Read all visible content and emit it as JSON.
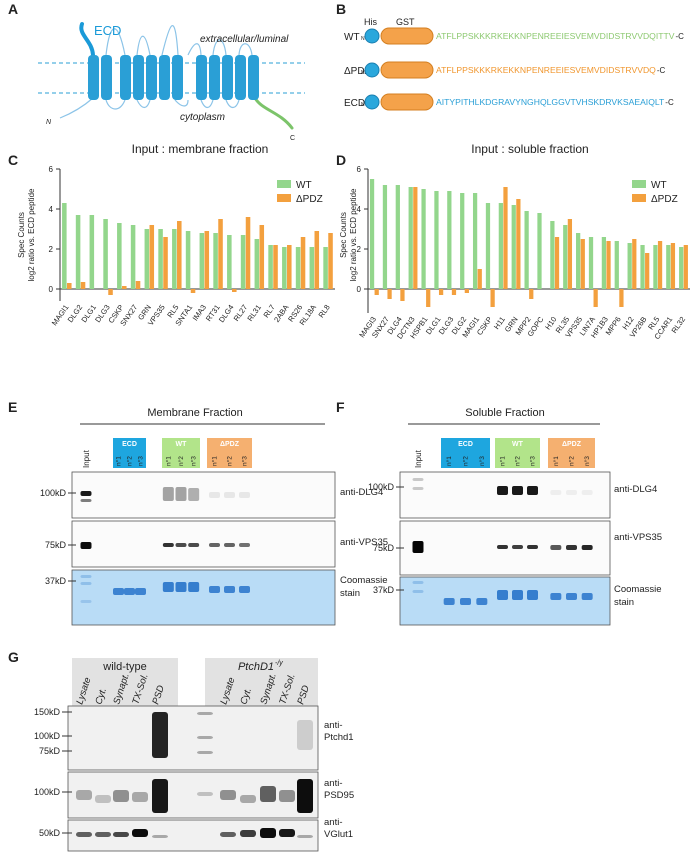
{
  "panel_labels": [
    "A",
    "B",
    "C",
    "D",
    "E",
    "F",
    "G"
  ],
  "topology": {
    "domain": "ECD",
    "outside": "extracellular/luminal",
    "inside": "cytoplasm",
    "n_term": "N",
    "c_term": "C"
  },
  "constructs": {
    "his": "His",
    "gst": "GST",
    "n_term": "N",
    "c_term": "-C",
    "rows": [
      {
        "name": "WT",
        "sequence": "ATFLPPSKKKRKEKKNPENREEIESVEMVDIDSTRVVDQITTV",
        "color": "#8dc971"
      },
      {
        "name": "ΔPDZ",
        "sequence": "ATFLPPSKKKRKEKKNPENREEIESVEMVDIDSTRVVDQ",
        "color": "#f0962e"
      },
      {
        "name": "ECD",
        "sequence": "AITYPITHLKDGRAVYNGHQLGGVTVHSKDRVKSAEAIQLT",
        "color": "#2a9fd6"
      }
    ]
  },
  "chart_data": [
    {
      "type": "bar",
      "title": "Input : membrane fraction",
      "y_label": [
        "Spec Counts",
        "log2 ratio vs. ECD peptide"
      ],
      "categories": [
        "MAGI1",
        "DLG2",
        "DLG1",
        "DLG3",
        "CSKP",
        "SNX27",
        "GRN",
        "VPS35",
        "RL5",
        "SNTA1",
        "IMA3",
        "RT31",
        "DLG4",
        "RL27",
        "RL31",
        "RL7",
        "2ABA",
        "RS26",
        "RL18A",
        "RL8"
      ],
      "series": [
        {
          "name": "WT",
          "color": "#93d68c",
          "values": [
            4.3,
            3.7,
            3.7,
            3.5,
            3.3,
            3.2,
            3.0,
            3.0,
            3.0,
            2.9,
            2.8,
            2.8,
            2.7,
            2.7,
            2.5,
            2.2,
            2.1,
            2.1,
            2.1,
            2.1
          ]
        },
        {
          "name": "ΔPDZ",
          "color": "#f3a03e",
          "values": [
            0.3,
            0.35,
            0,
            -0.3,
            0.15,
            0.4,
            3.2,
            2.6,
            3.4,
            -0.2,
            2.9,
            3.5,
            -0.15,
            3.6,
            3.2,
            2.2,
            2.2,
            2.6,
            2.9,
            2.8
          ]
        }
      ],
      "ylim": [
        -0.6,
        6
      ],
      "yticks": [
        0,
        2,
        4,
        6
      ],
      "legend": "upper right"
    },
    {
      "type": "bar",
      "title": "Input : soluble fraction",
      "y_label": [
        "Spec Counts",
        "log2 ratio vs. ECD peptide"
      ],
      "categories": [
        "MAGI3",
        "SNX27",
        "DLG4",
        "DCTN3",
        "HSPB1",
        "DLG1",
        "DLG3",
        "DLG2",
        "MAGI1",
        "CSKP",
        "H11",
        "GRN",
        "MPP2",
        "GOPC",
        "H10",
        "RL35",
        "VPS35",
        "LIN7A",
        "HP1B3",
        "MPP6",
        "H12",
        "VP26B",
        "RL5",
        "CCAR1",
        "RL32"
      ],
      "series": [
        {
          "name": "WT",
          "color": "#93d68c",
          "values": [
            5.5,
            5.2,
            5.2,
            5.1,
            5.0,
            4.9,
            4.9,
            4.8,
            4.8,
            4.3,
            4.3,
            4.2,
            3.9,
            3.8,
            3.4,
            3.2,
            2.8,
            2.6,
            2.6,
            2.4,
            2.3,
            2.2,
            2.2,
            2.2,
            2.1
          ]
        },
        {
          "name": "ΔPDZ",
          "color": "#f3a03e",
          "values": [
            -0.3,
            -0.5,
            -0.6,
            5.1,
            -0.9,
            -0.3,
            -0.3,
            -0.2,
            1.0,
            -0.9,
            5.1,
            4.5,
            -0.5,
            0,
            2.6,
            3.5,
            2.5,
            -0.9,
            2.4,
            -0.9,
            2.5,
            1.8,
            2.4,
            2.3,
            2.2
          ]
        }
      ],
      "ylim": [
        -1.2,
        6
      ],
      "yticks": [
        0,
        2,
        4,
        6
      ],
      "legend": "upper right"
    }
  ],
  "blots": [
    {
      "title": "Membrane Fraction",
      "input": "Input",
      "groups": [
        {
          "name": "ECD",
          "color": "#1ea6df",
          "lanes": [
            "n°1",
            "n°2",
            "n°3"
          ]
        },
        {
          "name": "WT",
          "color": "#b2e48a",
          "lanes": [
            "n°1",
            "n°2",
            "n°3"
          ]
        },
        {
          "name": "ΔPDZ",
          "color": "#f5b070",
          "lanes": [
            "n°1",
            "n°2",
            "n°3"
          ]
        }
      ],
      "markers": [
        "100kD",
        "75kD",
        "37kD"
      ],
      "probes": [
        [
          "anti-DLG4"
        ],
        [
          "anti-VPS35"
        ],
        [
          "Coomassie",
          "stain"
        ]
      ]
    },
    {
      "title": "Soluble Fraction",
      "input": "Input",
      "groups": [
        {
          "name": "ECD",
          "color": "#1ea6df",
          "lanes": [
            "n°1",
            "n°2",
            "n°3"
          ]
        },
        {
          "name": "WT",
          "color": "#b2e48a",
          "lanes": [
            "n°1",
            "n°2",
            "n°3"
          ]
        },
        {
          "name": "ΔPDZ",
          "color": "#f5b070",
          "lanes": [
            "n°1",
            "n°2",
            "n°3"
          ]
        }
      ],
      "markers": [
        "100kD",
        "75kD",
        "37kD"
      ],
      "probes": [
        [
          "anti-DLG4"
        ],
        [
          "anti-VPS35"
        ],
        [
          "Coomassie",
          "stain"
        ]
      ]
    }
  ],
  "fractionation": {
    "groups": [
      {
        "name": "wild-type",
        "lanes": [
          "Lysate",
          "Cyt.",
          "Synapt.",
          "TX-Sol.",
          "PSD"
        ]
      },
      {
        "name": "PtchD1",
        "superscript": "-/y",
        "lanes": [
          "Lysate",
          "Cyt.",
          "Synapt.",
          "TX-Sol.",
          "PSD"
        ]
      }
    ],
    "markers": [
      "150kD",
      "100kD",
      "75kD",
      "100kD",
      "50kD"
    ],
    "probes": [
      [
        "anti-",
        "Ptchd1"
      ],
      [
        "anti-",
        "PSD95"
      ],
      [
        "anti-",
        "VGlut1"
      ]
    ]
  }
}
